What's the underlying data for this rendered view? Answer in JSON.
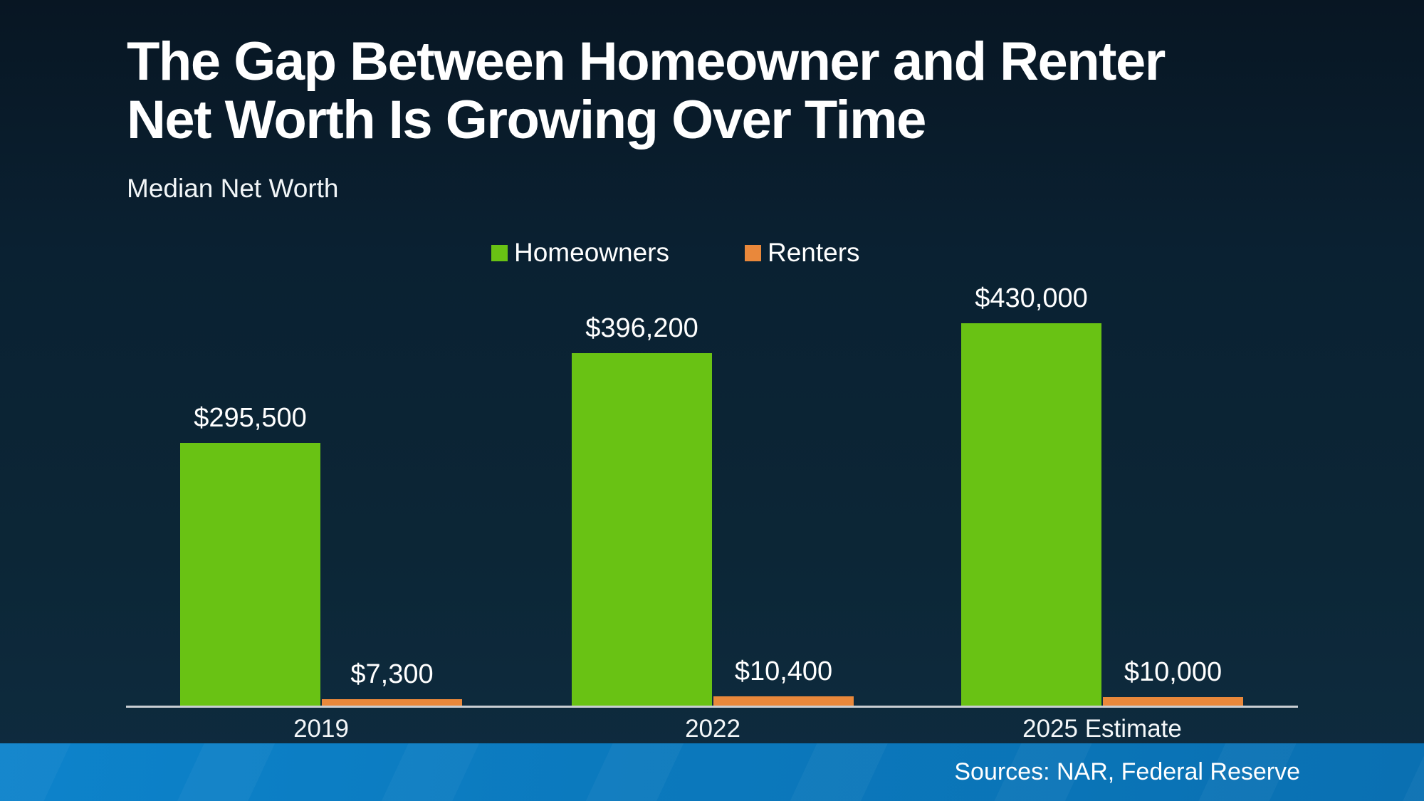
{
  "slide": {
    "title_line1": "The Gap Between Homeowner and Renter",
    "title_line2": "Net Worth Is Growing Over Time",
    "subtitle": "Median Net Worth",
    "source_note": "Sources: NAR, Federal Reserve"
  },
  "colors": {
    "background_top": "#081623",
    "background_bottom": "#0e2c40",
    "homeowners_green": "#69C214",
    "renters_orange": "#E9883B",
    "axis_line": "#c9ced3",
    "footer_blue": "#0b79bd",
    "text": "#ffffff"
  },
  "chart_data": {
    "type": "bar",
    "title": "The Gap Between Homeowner and Renter Net Worth Is Growing Over Time",
    "subtitle": "Median Net Worth",
    "categories": [
      "2019",
      "2022",
      "2025 Estimate"
    ],
    "series": [
      {
        "name": "Homeowners",
        "color": "#69C214",
        "values": [
          295500,
          396200,
          430000
        ],
        "labels": [
          "$295,500",
          "$396,200",
          "$430,000"
        ]
      },
      {
        "name": "Renters",
        "color": "#E9883B",
        "values": [
          7300,
          10400,
          10000
        ],
        "labels": [
          "$7,300",
          "$10,400",
          "$10,000"
        ]
      }
    ],
    "xlabel": "",
    "ylabel": "Median Net Worth ($)",
    "ylim": [
      0,
      500000
    ],
    "grid": false,
    "legend_position": "top-center",
    "value_labels_shown": true,
    "y_axis_ticks_shown": false
  }
}
